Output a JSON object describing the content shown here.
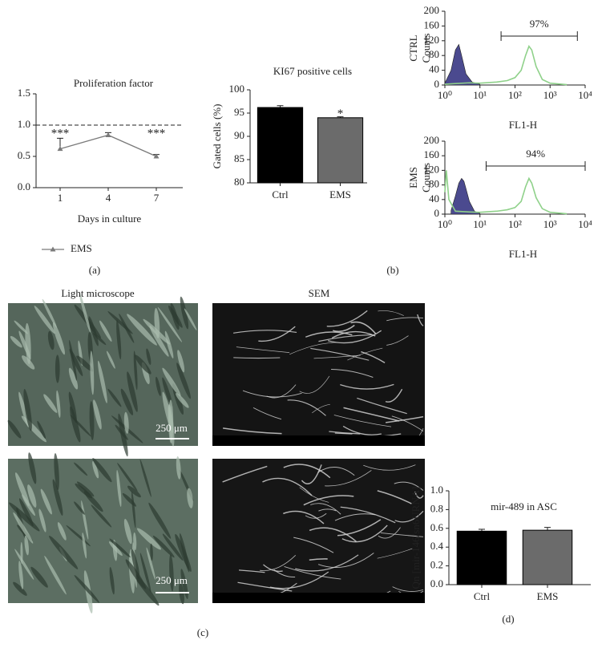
{
  "chart_data": [
    {
      "type": "line",
      "title": "Proliferation factor",
      "xlabel": "Days in culture",
      "categories": [
        "1",
        "4",
        "7"
      ],
      "series": [
        {
          "name": "EMS",
          "color": "#7a7a7a",
          "values": [
            0.62,
            0.84,
            0.5
          ],
          "errors": [
            0.17,
            0.04,
            0.03
          ]
        }
      ],
      "annotations": [
        "***",
        "***"
      ],
      "hline": 1,
      "ylim": [
        0,
        1.5
      ],
      "yticks": [
        {
          "value": 0,
          "label": "0.0"
        },
        0.5,
        {
          "value": 1,
          "label": "1.0"
        },
        1.5
      ],
      "panel": "(a)"
    },
    {
      "type": "bar",
      "title": "KI67 positive cells",
      "ylabel": "Gated cells (%)",
      "categories": [
        "Ctrl",
        "EMS"
      ],
      "values": [
        96.2,
        94.0
      ],
      "errors": [
        0.4,
        0.2
      ],
      "colors": [
        "#000000",
        "#6b6b6b"
      ],
      "annotations": [
        "*"
      ],
      "ylim": [
        80,
        100
      ],
      "yticks": [
        80,
        85,
        90,
        95,
        100
      ]
    },
    {
      "type": "histogram",
      "ylabel": [
        "CTRL",
        "Counts"
      ],
      "xlabel": "FL1-H",
      "xscale": "log",
      "series": [
        {
          "color": "#4b4a8f",
          "fill": true,
          "x": [
            1,
            1.5,
            2,
            2.5,
            3,
            4,
            6,
            10
          ],
          "values": [
            5,
            40,
            95,
            110,
            80,
            30,
            8,
            2
          ]
        },
        {
          "color": "#8fd18a",
          "x": [
            1,
            2,
            5,
            10,
            30,
            60,
            100,
            150,
            200,
            250,
            300,
            400,
            600,
            1000,
            3000
          ],
          "values": [
            2,
            4,
            6,
            5,
            8,
            12,
            20,
            40,
            80,
            105,
            95,
            50,
            15,
            5,
            1
          ]
        }
      ],
      "gate": {
        "range": [
          40,
          6000
        ],
        "label": "97%"
      },
      "xlim": [
        1,
        10000
      ],
      "xticks": [
        {
          "value": 1,
          "label": "10⁰"
        },
        {
          "value": 10,
          "label": "10¹"
        },
        {
          "value": 100,
          "label": "10²"
        },
        {
          "value": 1000,
          "label": "10³"
        },
        {
          "value": 10000,
          "label": "10⁴"
        }
      ],
      "ylim": [
        0,
        200
      ],
      "yticks": [
        0,
        40,
        80,
        120,
        160,
        200
      ]
    },
    {
      "type": "histogram",
      "ylabel": [
        "EMS",
        "Counts"
      ],
      "xlabel": "FL1-H",
      "xscale": "log",
      "series": [
        {
          "color": "#4b4a8f",
          "fill": true,
          "x": [
            1.5,
            2,
            2.5,
            3,
            3.5,
            4,
            5,
            7,
            10
          ],
          "values": [
            10,
            50,
            85,
            98,
            90,
            70,
            35,
            8,
            2
          ]
        },
        {
          "color": "#8fd18a",
          "x": [
            1,
            1.1,
            1.3,
            2,
            5,
            10,
            30,
            60,
            100,
            150,
            200,
            250,
            300,
            400,
            600,
            1000,
            3000
          ],
          "values": [
            60,
            120,
            40,
            8,
            6,
            5,
            8,
            12,
            18,
            35,
            75,
            98,
            85,
            45,
            15,
            5,
            1
          ]
        }
      ],
      "gate": {
        "range": [
          15,
          10000
        ],
        "label": "94%"
      },
      "xlim": [
        1,
        10000
      ],
      "xticks": [
        {
          "value": 1,
          "label": "10⁰"
        },
        {
          "value": 10,
          "label": "10¹"
        },
        {
          "value": 100,
          "label": "10²"
        },
        {
          "value": 1000,
          "label": "10³"
        },
        {
          "value": 10000,
          "label": "10⁴"
        }
      ],
      "ylim": [
        0,
        200
      ],
      "yticks": [
        0,
        40,
        80,
        120,
        160,
        200
      ],
      "panel": "(b)"
    },
    {
      "type": "bar",
      "title": "mir-489 in ASC",
      "ylabel": "Qn [mir-146/sn6URNA]",
      "categories": [
        "Ctrl",
        "EMS"
      ],
      "values": [
        0.57,
        0.58
      ],
      "errors": [
        0.02,
        0.03
      ],
      "colors": [
        "#000000",
        "#6b6b6b"
      ],
      "ylim": [
        0,
        1
      ],
      "yticks": [
        {
          "value": 0,
          "label": "0.0"
        },
        0.2,
        0.4,
        0.6,
        0.8,
        {
          "value": 1,
          "label": "1.0"
        }
      ],
      "panel": "(d)"
    }
  ],
  "images": {
    "light_title": "Light microscope",
    "sem_title": "SEM",
    "scale_top": "250 μm",
    "scale_bottom": "250 μm",
    "panel": "(c)"
  }
}
